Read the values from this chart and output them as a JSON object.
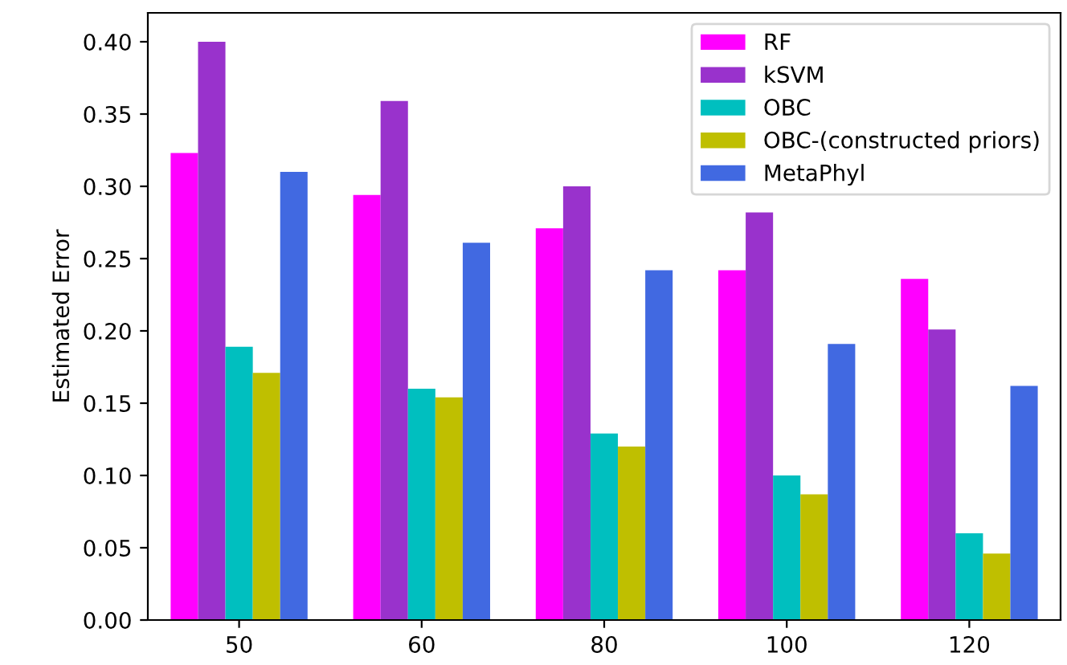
{
  "chart_data": {
    "type": "bar",
    "ylabel": "Estimated Error",
    "categories": [
      "50",
      "60",
      "80",
      "100",
      "120"
    ],
    "series": [
      {
        "name": "RF",
        "color": "#ff00ff",
        "values": [
          0.323,
          0.294,
          0.271,
          0.242,
          0.236
        ]
      },
      {
        "name": "kSVM",
        "color": "#9932cc",
        "values": [
          0.4,
          0.359,
          0.3,
          0.282,
          0.201
        ]
      },
      {
        "name": "OBC",
        "color": "#00bfbf",
        "values": [
          0.189,
          0.16,
          0.129,
          0.1,
          0.06
        ]
      },
      {
        "name": "OBC-(constructed priors)",
        "color": "#bfbf00",
        "values": [
          0.171,
          0.154,
          0.12,
          0.087,
          0.046
        ]
      },
      {
        "name": "MetaPhyl",
        "color": "#4169e1",
        "values": [
          0.31,
          0.261,
          0.242,
          0.191,
          0.162
        ]
      }
    ],
    "ylim": [
      0,
      0.42
    ],
    "yticks": [
      {
        "value": 0,
        "label": "0.00"
      },
      {
        "value": 0.05,
        "label": "0.05"
      },
      {
        "value": 0.1,
        "label": "0.10"
      },
      {
        "value": 0.15,
        "label": "0.15"
      },
      {
        "value": 0.2,
        "label": "0.20"
      },
      {
        "value": 0.25,
        "label": "0.25"
      },
      {
        "value": 0.3,
        "label": "0.30"
      },
      {
        "value": 0.35,
        "label": "0.35"
      },
      {
        "value": 0.4,
        "label": "0.40"
      }
    ],
    "legend": "top right",
    "grid": false
  }
}
